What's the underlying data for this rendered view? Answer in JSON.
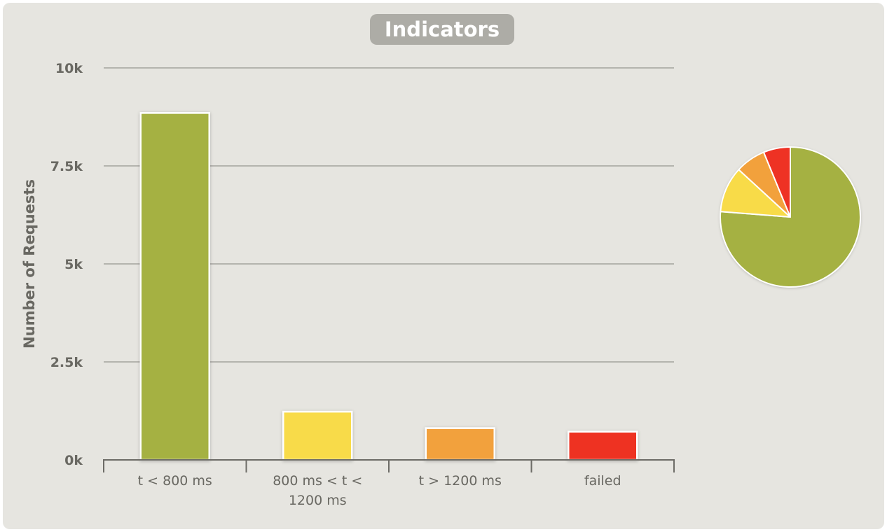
{
  "chart_data": {
    "title": "Indicators",
    "type": "bar",
    "ylabel": "Number of Requests",
    "ylim": [
      0,
      10000
    ],
    "yticks": [
      {
        "value": 0,
        "label": "0k"
      },
      {
        "value": 2500,
        "label": "2.5k"
      },
      {
        "value": 5000,
        "label": "5k"
      },
      {
        "value": 7500,
        "label": "7.5k"
      },
      {
        "value": 10000,
        "label": "10k"
      }
    ],
    "categories": [
      "t < 800 ms",
      "800 ms < t < 1200 ms",
      "t > 1200 ms",
      "failed"
    ],
    "category_lines": [
      [
        "t < 800 ms"
      ],
      [
        "800 ms < t <",
        "1200 ms"
      ],
      [
        "t > 1200 ms"
      ],
      [
        "failed"
      ]
    ],
    "values": [
      8850,
      1230,
      810,
      720
    ],
    "colors": [
      "#a5b142",
      "#f8db48",
      "#f2a13c",
      "#ee3224"
    ],
    "grid": true,
    "pie": {
      "values": [
        8850,
        1230,
        810,
        720
      ],
      "colors": [
        "#a5b142",
        "#f8db48",
        "#f2a13c",
        "#ee3224"
      ]
    }
  }
}
